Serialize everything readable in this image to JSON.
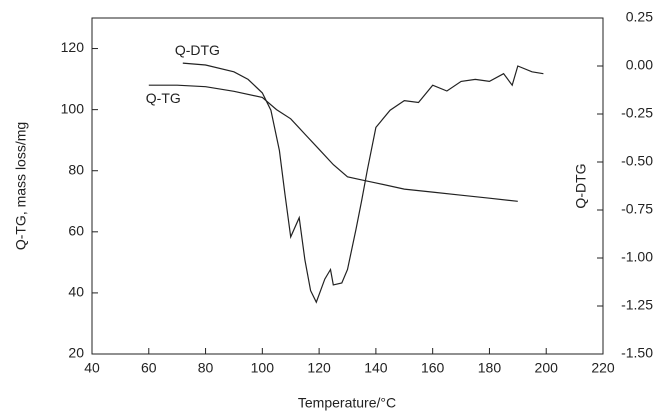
{
  "chart_data": {
    "type": "line",
    "x_label": "Temperature/°C",
    "y_label": "Q-TG, mass loss/mg",
    "y2_label": "Q-DTG",
    "xlim": [
      40,
      220
    ],
    "xticks": [
      40,
      60,
      80,
      100,
      120,
      140,
      160,
      180,
      200,
      220
    ],
    "ylim": [
      20,
      130
    ],
    "yticks": [
      20,
      40,
      60,
      80,
      100,
      120
    ],
    "y2lim": [
      -1.5,
      0.25
    ],
    "y2ticks": [
      0.25,
      {
        "value": 0,
        "label": "0.00"
      },
      -0.25,
      {
        "value": -0.5,
        "label": "-0.50"
      },
      -0.75,
      {
        "value": -1,
        "label": "-1.00"
      },
      -1.25,
      {
        "value": -1.5,
        "label": "-1.50"
      }
    ],
    "series": [
      {
        "name": "Q-TG",
        "color": "#222222",
        "x": [
          60,
          70,
          80,
          90,
          100,
          105,
          110,
          115,
          120,
          125,
          130,
          135,
          140,
          150,
          160,
          170,
          180,
          190
        ],
        "values": [
          108,
          108,
          107.5,
          106,
          104,
          100,
          97,
          92,
          87,
          82,
          78,
          77,
          76,
          74,
          73,
          72,
          71,
          70
        ]
      },
      {
        "name": "Q-DTG",
        "color": "#222222",
        "axis": "y2",
        "x": [
          72,
          80,
          90,
          95,
          100,
          103,
          106,
          108,
          110,
          113,
          115,
          117,
          119,
          122,
          124,
          125,
          128,
          130,
          133,
          135,
          137,
          140,
          145,
          150,
          155,
          160,
          165,
          170,
          175,
          180,
          185,
          188,
          190,
          195,
          199
        ],
        "values": [
          0.015,
          0.005,
          -0.03,
          -0.07,
          -0.14,
          -0.23,
          -0.44,
          -0.67,
          -0.89,
          -0.79,
          -1.01,
          -1.17,
          -1.23,
          -1.11,
          -1.06,
          -1.14,
          -1.13,
          -1.06,
          -0.85,
          -0.7,
          -0.54,
          -0.32,
          -0.23,
          -0.18,
          -0.19,
          -0.1,
          -0.13,
          -0.08,
          -0.07,
          -0.08,
          -0.04,
          -0.1,
          0.0,
          -0.03,
          -0.04
        ]
      }
    ]
  }
}
